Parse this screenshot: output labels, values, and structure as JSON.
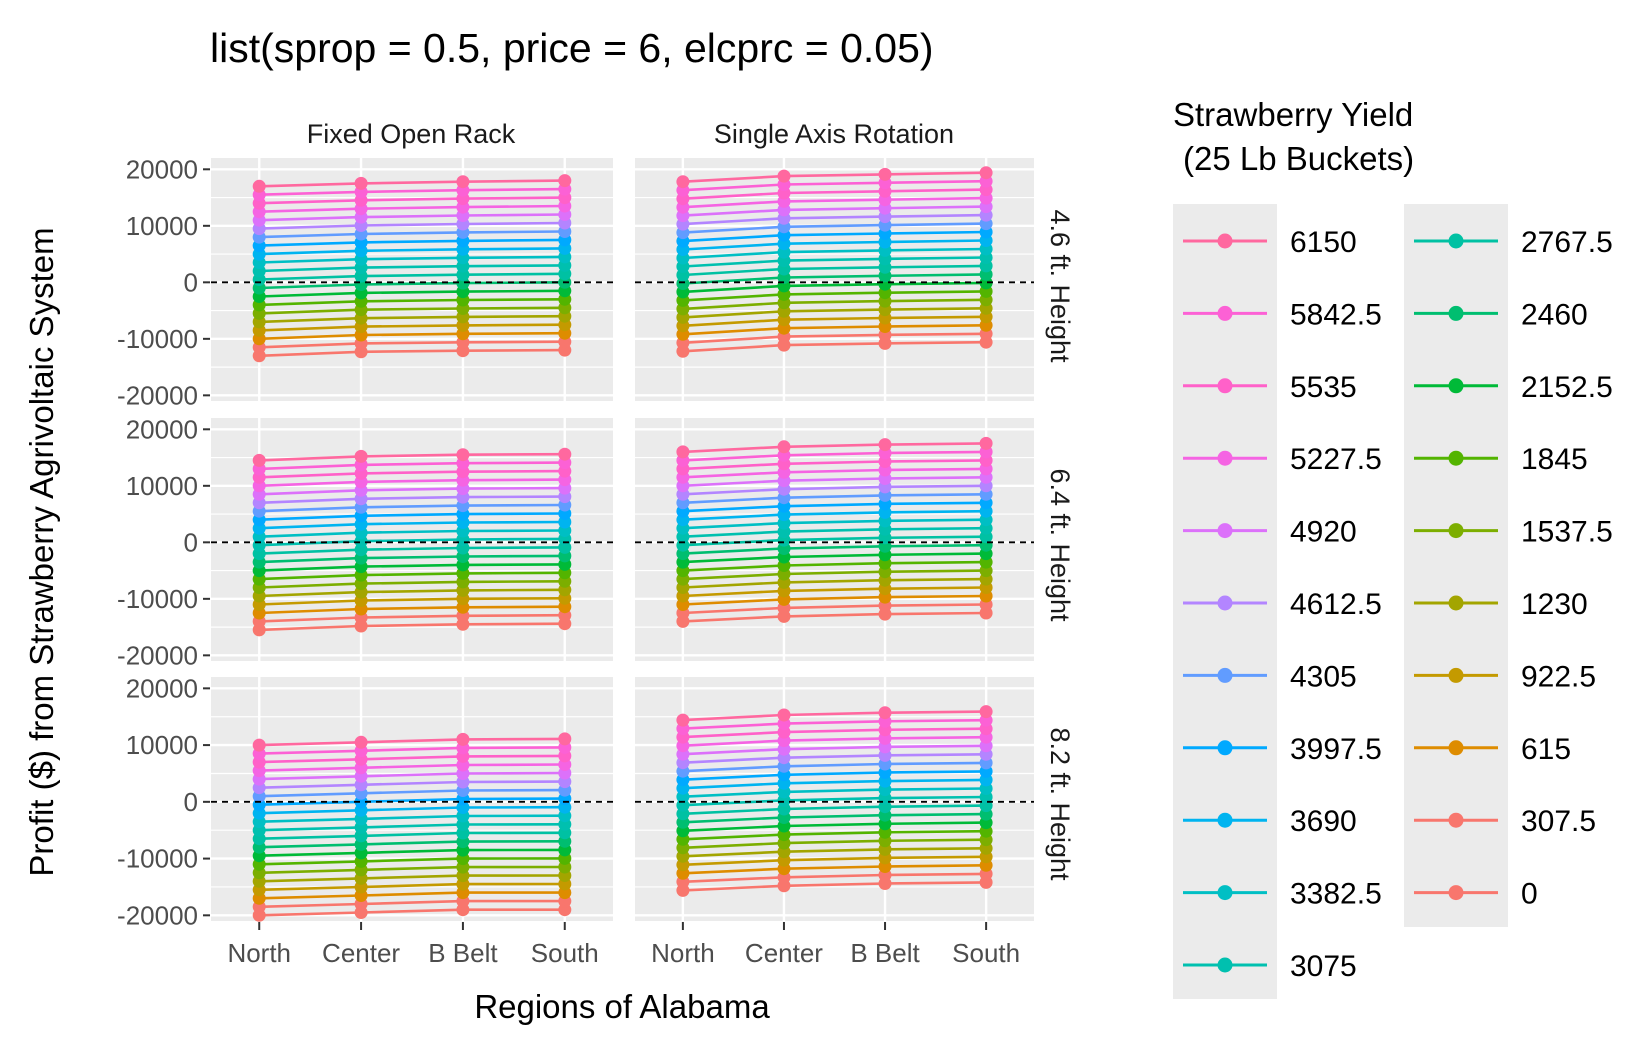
{
  "chart_data": {
    "type": "line",
    "title": "list(sprop = 0.5, price = 6, elcprc = 0.05)",
    "xlabel": "Regions of Alabama",
    "ylabel": "Profit ($) from Strawberry Agrivoltaic System",
    "categories": [
      "North",
      "Center",
      "B Belt",
      "South"
    ],
    "yticks": [
      20000,
      10000,
      0,
      -10000,
      -20000
    ],
    "ylim": [
      -21000,
      22000
    ],
    "grid": true,
    "reference_line": 0,
    "col_facets": [
      "Fixed Open Rack",
      "Single Axis Rotation"
    ],
    "row_facets": [
      "4.6 ft. Height",
      "6.4 ft. Height",
      "8.2 ft. Height"
    ],
    "legend": {
      "title_line1": "Strawberry Yield",
      "title_line2": "(25 Lb Buckets)",
      "placement": "right"
    },
    "series_spec": {
      "count": 21,
      "yield_step": 307.5,
      "yield_values": [
        6150,
        5842.5,
        5535,
        5227.5,
        4920,
        4612.5,
        4305,
        3997.5,
        3690,
        3382.5,
        3075,
        2767.5,
        2460,
        2152.5,
        1845,
        1537.5,
        1230,
        922.5,
        615,
        307.5,
        0
      ],
      "legend_labels": [
        "6150",
        "5842.5",
        "5535",
        "5227.5",
        "4920",
        "4612.5",
        "4305",
        "3997.5",
        "3690",
        "3382.5",
        "3075",
        "2767.5",
        "2460",
        "2152.5",
        "1845",
        "1537.5",
        "1230",
        "922.5",
        "615",
        "307.5",
        "0"
      ],
      "colors": [
        "#FF689F",
        "#FC61D5",
        "#FF61C9",
        "#F564E3",
        "#DC71FA",
        "#B385FF",
        "#619CFF",
        "#00A9FF",
        "#00B4F0",
        "#00BFC4",
        "#00C0AF",
        "#00C1A3",
        "#00BE70",
        "#00BA38",
        "#53B400",
        "#7CAE00",
        "#A3A500",
        "#C49A00",
        "#DE8C00",
        "#F8766D",
        "#F8766D"
      ]
    },
    "panels": [
      {
        "col": 0,
        "row": 0,
        "base": [
          -13000,
          -12300,
          -12100,
          -12000
        ],
        "step": [
          1500,
          1490,
          1495,
          1500
        ]
      },
      {
        "col": 1,
        "row": 0,
        "base": [
          -12200,
          -11100,
          -10800,
          -10600
        ],
        "step": [
          1500,
          1495,
          1495,
          1500
        ]
      },
      {
        "col": 0,
        "row": 1,
        "base": [
          -15500,
          -14800,
          -14500,
          -14400
        ],
        "step": [
          1500,
          1500,
          1500,
          1500
        ]
      },
      {
        "col": 1,
        "row": 1,
        "base": [
          -14000,
          -13100,
          -12700,
          -12500
        ],
        "step": [
          1500,
          1500,
          1500,
          1500
        ]
      },
      {
        "col": 0,
        "row": 2,
        "base": [
          -20000,
          -19500,
          -19000,
          -19000
        ],
        "step": [
          1500,
          1500,
          1500,
          1505
        ]
      },
      {
        "col": 1,
        "row": 2,
        "base": [
          -15600,
          -14800,
          -14400,
          -14200
        ],
        "step": [
          1500,
          1505,
          1505,
          1505
        ]
      }
    ]
  }
}
